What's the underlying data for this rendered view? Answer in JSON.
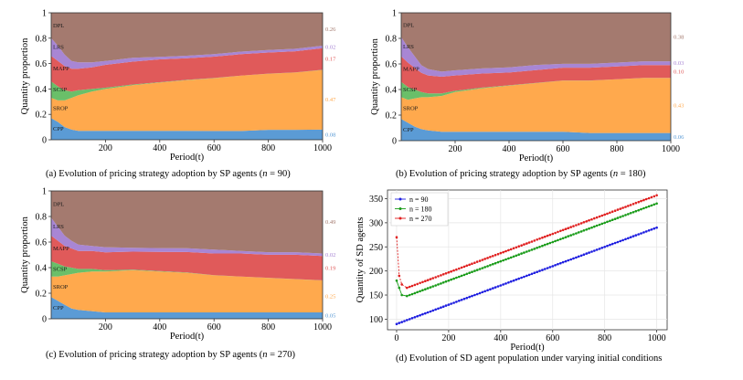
{
  "figure": {
    "panels": [
      {
        "caption_prefix": "(a)  Evolution of pricing strategy adoption by SP agents (",
        "caption_n": "n",
        "caption_suffix": " = 90)"
      },
      {
        "caption_prefix": "(b)  Evolution of pricing strategy adoption by SP agents (",
        "caption_n": "n",
        "caption_suffix": " = 180)"
      },
      {
        "caption_prefix": "(c)  Evolution of pricing strategy adoption by SP agents (",
        "caption_n": "n",
        "caption_suffix": " = 270)"
      },
      {
        "caption_prefix": "(d) Evolution of SD agent population under varying initial conditions",
        "caption_n": "",
        "caption_suffix": ""
      }
    ]
  },
  "chart_data": [
    {
      "type": "area",
      "stacked": true,
      "xlabel": "Period(t)",
      "ylabel": "Quantity proportion",
      "xlim": [
        0,
        1000
      ],
      "ylim": [
        0,
        1.0
      ],
      "xticks": [
        200,
        400,
        600,
        800,
        1000
      ],
      "yticks": [
        0.0,
        0.2,
        0.4,
        0.6,
        0.8,
        1.0
      ],
      "x": [
        0,
        25,
        50,
        75,
        100,
        150,
        200,
        300,
        400,
        500,
        600,
        700,
        800,
        900,
        1000
      ],
      "series": [
        {
          "name": "CPP",
          "color": "#5b9bd5",
          "values": [
            0.17,
            0.14,
            0.1,
            0.08,
            0.07,
            0.07,
            0.07,
            0.07,
            0.07,
            0.07,
            0.07,
            0.07,
            0.08,
            0.08,
            0.08
          ]
        },
        {
          "name": "SROP",
          "color": "#ffa94d",
          "values": [
            0.16,
            0.17,
            0.21,
            0.25,
            0.28,
            0.31,
            0.33,
            0.36,
            0.38,
            0.4,
            0.42,
            0.44,
            0.45,
            0.46,
            0.47
          ]
        },
        {
          "name": "SCSP",
          "color": "#6abf69",
          "values": [
            0.13,
            0.11,
            0.08,
            0.05,
            0.04,
            0.02,
            0.01,
            0.005,
            0.003,
            0.002,
            0.001,
            0.001,
            0.001,
            0.001,
            0.001
          ]
        },
        {
          "name": "MAPP",
          "color": "#e05a5a",
          "values": [
            0.2,
            0.2,
            0.19,
            0.18,
            0.17,
            0.17,
            0.18,
            0.18,
            0.18,
            0.17,
            0.17,
            0.17,
            0.17,
            0.17,
            0.17
          ]
        },
        {
          "name": "LRS",
          "color": "#a886d4",
          "values": [
            0.14,
            0.12,
            0.09,
            0.06,
            0.05,
            0.04,
            0.03,
            0.03,
            0.02,
            0.02,
            0.02,
            0.02,
            0.02,
            0.02,
            0.02
          ]
        },
        {
          "name": "DPL",
          "color": "#a47a6f",
          "values": [
            0.2,
            0.26,
            0.33,
            0.38,
            0.39,
            0.39,
            0.38,
            0.355,
            0.347,
            0.338,
            0.329,
            0.309,
            0.299,
            0.289,
            0.259
          ]
        }
      ],
      "end_labels": [
        "0.08",
        "0.47",
        "0.17",
        "0.02",
        "0.26"
      ]
    },
    {
      "type": "area",
      "stacked": true,
      "xlabel": "Period(t)",
      "ylabel": "Quantity proportion",
      "xlim": [
        0,
        1000
      ],
      "ylim": [
        0,
        1.0
      ],
      "xticks": [
        200,
        400,
        600,
        800,
        1000
      ],
      "yticks": [
        0.0,
        0.2,
        0.4,
        0.6,
        0.8,
        1.0
      ],
      "x": [
        0,
        25,
        50,
        75,
        100,
        150,
        200,
        300,
        400,
        500,
        600,
        700,
        800,
        900,
        1000
      ],
      "series": [
        {
          "name": "CPP",
          "color": "#5b9bd5",
          "values": [
            0.17,
            0.14,
            0.11,
            0.09,
            0.08,
            0.07,
            0.07,
            0.07,
            0.07,
            0.07,
            0.07,
            0.06,
            0.06,
            0.06,
            0.06
          ]
        },
        {
          "name": "SROP",
          "color": "#ffa94d",
          "values": [
            0.17,
            0.18,
            0.22,
            0.25,
            0.26,
            0.28,
            0.31,
            0.34,
            0.36,
            0.38,
            0.4,
            0.41,
            0.42,
            0.43,
            0.43
          ]
        },
        {
          "name": "SCSP",
          "color": "#6abf69",
          "values": [
            0.12,
            0.1,
            0.07,
            0.04,
            0.03,
            0.02,
            0.01,
            0.005,
            0.003,
            0.002,
            0.001,
            0.001,
            0.001,
            0.001,
            0.001
          ]
        },
        {
          "name": "MAPP",
          "color": "#e05a5a",
          "values": [
            0.2,
            0.19,
            0.17,
            0.15,
            0.14,
            0.13,
            0.12,
            0.11,
            0.1,
            0.1,
            0.1,
            0.1,
            0.1,
            0.1,
            0.1
          ]
        },
        {
          "name": "LRS",
          "color": "#a886d4",
          "values": [
            0.15,
            0.12,
            0.09,
            0.06,
            0.05,
            0.04,
            0.04,
            0.04,
            0.04,
            0.04,
            0.03,
            0.03,
            0.03,
            0.03,
            0.03
          ]
        },
        {
          "name": "DPL",
          "color": "#a47a6f",
          "values": [
            0.19,
            0.27,
            0.34,
            0.41,
            0.44,
            0.46,
            0.45,
            0.435,
            0.427,
            0.408,
            0.399,
            0.399,
            0.389,
            0.379,
            0.379
          ]
        }
      ],
      "end_labels": [
        "0.06",
        "0.43",
        "0.10",
        "0.03",
        "0.38"
      ]
    },
    {
      "type": "area",
      "stacked": true,
      "xlabel": "Period(t)",
      "ylabel": "Quantity proportion",
      "xlim": [
        0,
        1000
      ],
      "ylim": [
        0,
        1.0
      ],
      "xticks": [
        200,
        400,
        600,
        800,
        1000
      ],
      "yticks": [
        0.0,
        0.2,
        0.4,
        0.6,
        0.8,
        1.0
      ],
      "x": [
        0,
        25,
        50,
        75,
        100,
        150,
        200,
        300,
        400,
        500,
        600,
        700,
        800,
        900,
        1000
      ],
      "series": [
        {
          "name": "CPP",
          "color": "#5b9bd5",
          "values": [
            0.17,
            0.14,
            0.11,
            0.08,
            0.07,
            0.06,
            0.05,
            0.05,
            0.05,
            0.05,
            0.05,
            0.05,
            0.05,
            0.05,
            0.05
          ]
        },
        {
          "name": "SROP",
          "color": "#ffa94d",
          "values": [
            0.16,
            0.19,
            0.23,
            0.27,
            0.29,
            0.31,
            0.32,
            0.33,
            0.32,
            0.31,
            0.29,
            0.28,
            0.27,
            0.26,
            0.25
          ]
        },
        {
          "name": "SCSP",
          "color": "#6abf69",
          "values": [
            0.12,
            0.1,
            0.07,
            0.05,
            0.03,
            0.02,
            0.01,
            0.005,
            0.003,
            0.002,
            0.001,
            0.001,
            0.001,
            0.001,
            0.001
          ]
        },
        {
          "name": "MAPP",
          "color": "#e05a5a",
          "values": [
            0.2,
            0.18,
            0.16,
            0.15,
            0.14,
            0.14,
            0.14,
            0.14,
            0.15,
            0.16,
            0.17,
            0.18,
            0.18,
            0.19,
            0.19
          ]
        },
        {
          "name": "LRS",
          "color": "#a886d4",
          "values": [
            0.14,
            0.11,
            0.08,
            0.06,
            0.05,
            0.04,
            0.04,
            0.03,
            0.03,
            0.03,
            0.03,
            0.02,
            0.02,
            0.02,
            0.02
          ]
        },
        {
          "name": "DPL",
          "color": "#a47a6f",
          "values": [
            0.21,
            0.28,
            0.35,
            0.39,
            0.42,
            0.43,
            0.44,
            0.445,
            0.447,
            0.448,
            0.459,
            0.469,
            0.479,
            0.479,
            0.489
          ]
        }
      ],
      "end_labels": [
        "0.05",
        "0.25",
        "0.19",
        "0.02",
        "0.49"
      ]
    },
    {
      "type": "line",
      "xlabel": "Period(t)",
      "ylabel": "Quantity of SD agents",
      "xlim": [
        -35,
        1040
      ],
      "ylim": [
        78,
        368
      ],
      "xticks": [
        0,
        200,
        400,
        600,
        800,
        1000
      ],
      "yticks": [
        100,
        150,
        200,
        250,
        300,
        350
      ],
      "grid": true,
      "legend": "top-left",
      "series": [
        {
          "name": "n = 90",
          "color": "#1f1fe0",
          "marker": "dot",
          "start": 90,
          "slope": 0.2
        },
        {
          "name": "n = 180",
          "color": "#1a9c1a",
          "marker": "dot",
          "points": [
            [
              0,
              180
            ],
            [
              10,
              165
            ],
            [
              20,
              150
            ],
            [
              40,
              148
            ]
          ],
          "slope": 0.2
        },
        {
          "name": "n = 270",
          "color": "#e02020",
          "marker": "dot",
          "points": [
            [
              0,
              270
            ],
            [
              10,
              190
            ],
            [
              20,
              172
            ],
            [
              40,
              165
            ]
          ],
          "slope": 0.2
        }
      ]
    }
  ]
}
